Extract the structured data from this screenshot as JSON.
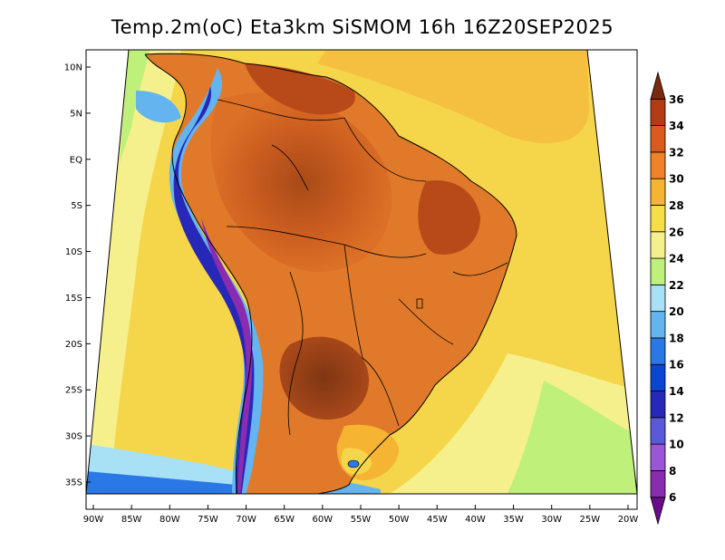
{
  "title": "Temp.2m(oC) Eta3km SiSMOM 16h 16Z20SEP2025",
  "axes": {
    "x_ticks": [
      "90W",
      "85W",
      "80W",
      "75W",
      "70W",
      "65W",
      "60W",
      "55W",
      "50W",
      "45W",
      "40W",
      "35W",
      "30W",
      "25W",
      "20W"
    ],
    "y_ticks": [
      "10N",
      "5N",
      "EQ",
      "5S",
      "10S",
      "15S",
      "20S",
      "25S",
      "30S",
      "35S"
    ]
  },
  "colorbar": {
    "labels": [
      "6",
      "8",
      "10",
      "12",
      "14",
      "16",
      "18",
      "20",
      "22",
      "24",
      "26",
      "28",
      "30",
      "32",
      "34",
      "36"
    ],
    "colors": [
      "#6a0a8c",
      "#8a2cb0",
      "#9b55d8",
      "#5a5ad8",
      "#2828b8",
      "#0a46d2",
      "#2a78e6",
      "#64b4f0",
      "#a8e0f5",
      "#bef07a",
      "#f5f08c",
      "#f5de46",
      "#f5b432",
      "#f0822a",
      "#dc5a1e",
      "#b43c14",
      "#7a2a0e"
    ]
  },
  "chart_data": {
    "type": "heatmap",
    "title": "Temp.2m(oC) Eta3km SiSMOM 16h 16Z20SEP2025",
    "variable": "2m temperature",
    "units": "oC",
    "model": "Eta3km SiSMOM",
    "forecast_hour": "16h",
    "valid_time": "16Z20SEP2025",
    "lon_range": [
      -90,
      -20
    ],
    "lat_range": [
      -38,
      11
    ],
    "colorbar_levels": [
      6,
      8,
      10,
      12,
      14,
      16,
      18,
      20,
      22,
      24,
      26,
      28,
      30,
      32,
      34,
      36
    ]
  }
}
